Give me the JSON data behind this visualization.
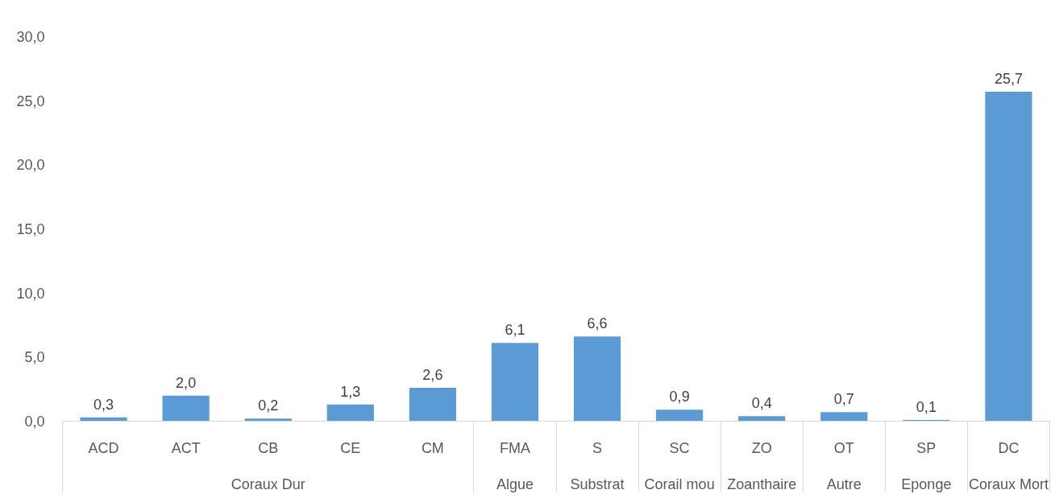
{
  "chart_data": {
    "type": "bar",
    "categories": [
      "ACD",
      "ACT",
      "CB",
      "CE",
      "CM",
      "FMA",
      "S",
      "SC",
      "ZO",
      "OT",
      "SP",
      "DC"
    ],
    "values": [
      0.3,
      2.0,
      0.2,
      1.3,
      2.6,
      6.1,
      6.6,
      0.9,
      0.4,
      0.7,
      0.1,
      25.7
    ],
    "value_labels": [
      "0,3",
      "2,0",
      "0,2",
      "1,3",
      "2,6",
      "6,1",
      "6,6",
      "0,9",
      "0,4",
      "0,7",
      "0,1",
      "25,7"
    ],
    "color": "#5b9bd5",
    "ylim": [
      0,
      30
    ],
    "yticks": [
      {
        "value": 0,
        "label": "0,0"
      },
      {
        "value": 5,
        "label": "5,0"
      },
      {
        "value": 10,
        "label": "10,0"
      },
      {
        "value": 15,
        "label": "15,0"
      },
      {
        "value": 20,
        "label": "20,0"
      },
      {
        "value": 25,
        "label": "25,0"
      },
      {
        "value": 30,
        "label": "30,0"
      }
    ],
    "grid": false,
    "annotations": [
      "Coraux Dur",
      "Algue",
      "Substrat",
      "Corail mou",
      "Zoanthaire",
      "Autre",
      "Eponge",
      "Coraux Mort"
    ]
  }
}
